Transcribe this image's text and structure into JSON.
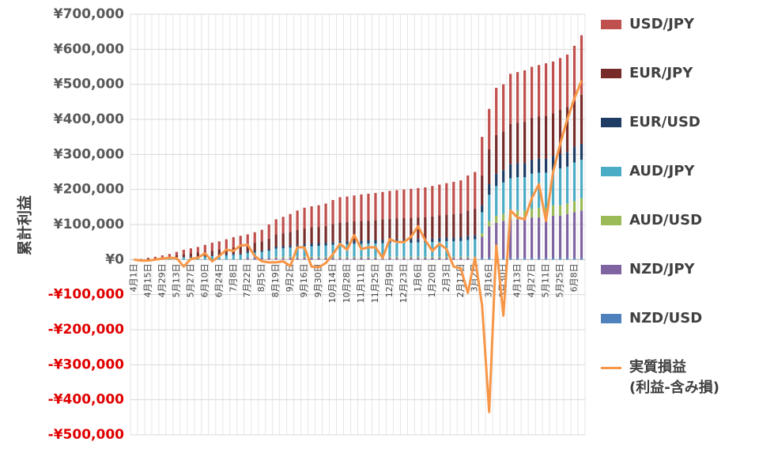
{
  "chart_data": {
    "type": "stacked-bar-line",
    "y_axis_label": "累計利益",
    "categories": [
      "4月1日",
      null,
      "4月15日",
      null,
      "4月29日",
      null,
      "5月13日",
      null,
      "5月27日",
      null,
      "6月10日",
      null,
      "6月24日",
      null,
      "7月8日",
      null,
      "7月22日",
      null,
      "8月5日",
      null,
      "8月19日",
      null,
      "9月2日",
      null,
      "9月16日",
      null,
      "9月30日",
      null,
      "10月14日",
      null,
      "10月28日",
      null,
      "11月11日",
      null,
      "11月25日",
      null,
      "12月9日",
      null,
      "12月23日",
      null,
      "1月6日",
      null,
      "1月20日",
      null,
      "2月3日",
      null,
      "2月17日",
      null,
      "3月2日",
      null,
      "3月16日",
      null,
      "3月30日",
      null,
      "4月13日",
      null,
      "4月27日",
      null,
      "5月11日",
      null,
      "5月25日",
      null,
      "6月8日",
      null
    ],
    "ylim": [
      -500000,
      700000
    ],
    "yticks": [
      {
        "value": 700000,
        "label": "¥700,000"
      },
      {
        "value": 600000,
        "label": "¥600,000"
      },
      {
        "value": 500000,
        "label": "¥500,000"
      },
      {
        "value": 400000,
        "label": "¥400,000"
      },
      {
        "value": 300000,
        "label": "¥300,000"
      },
      {
        "value": 200000,
        "label": "¥200,000"
      },
      {
        "value": 100000,
        "label": "¥100,000"
      },
      {
        "value": 0,
        "label": "¥0"
      },
      {
        "value": -100000,
        "label": "-¥100,000"
      },
      {
        "value": -200000,
        "label": "-¥200,000"
      },
      {
        "value": -300000,
        "label": "-¥300,000"
      },
      {
        "value": -400000,
        "label": "-¥400,000"
      },
      {
        "value": -500000,
        "label": "-¥500,000"
      }
    ],
    "grid": true,
    "legend": "right",
    "series": [
      {
        "name": "USD/JPY",
        "color": "#c0504d",
        "values": [
          0,
          1000,
          2000,
          4000,
          5000,
          7000,
          10000,
          13000,
          14000,
          16000,
          19000,
          22000,
          23000,
          26000,
          29000,
          31000,
          27000,
          30000,
          33000,
          40000,
          43000,
          47000,
          51000,
          55000,
          59000,
          60000,
          62000,
          64000,
          69000,
          72000,
          73000,
          74000,
          76000,
          77000,
          77000,
          78000,
          80000,
          81000,
          82000,
          83000,
          84000,
          85000,
          87000,
          88000,
          90000,
          92000,
          94000,
          100000,
          105000,
          110000,
          115000,
          135000,
          135000,
          143000,
          145000,
          147000,
          145000,
          147000,
          150000,
          148000,
          148000,
          150000,
          158000,
          170000
        ]
      },
      {
        "name": "EUR/JPY",
        "color": "#772c2a",
        "values": [
          0,
          1000,
          2000,
          2000,
          4000,
          5000,
          7000,
          8000,
          10000,
          11000,
          13000,
          14000,
          16000,
          17000,
          19000,
          20000,
          22000,
          23000,
          26000,
          30000,
          35000,
          37000,
          39000,
          42000,
          44000,
          46000,
          46000,
          48000,
          51000,
          53000,
          54000,
          55000,
          56000,
          56000,
          57000,
          58000,
          59000,
          59000,
          60000,
          61000,
          61000,
          62000,
          63000,
          64000,
          65000,
          67000,
          68000,
          72000,
          75000,
          85000,
          100000,
          110000,
          110000,
          115000,
          115000,
          118000,
          120000,
          120000,
          122000,
          122000,
          125000,
          128000,
          130000,
          140000
        ]
      },
      {
        "name": "EUR/USD",
        "color": "#1f3d64",
        "values": [
          0,
          0,
          0,
          0,
          1000,
          1000,
          1000,
          1000,
          2000,
          2000,
          2000,
          2000,
          3000,
          3000,
          3000,
          3000,
          4000,
          4000,
          4000,
          5000,
          6000,
          6000,
          6000,
          7000,
          7000,
          8000,
          8000,
          8000,
          8000,
          9000,
          9000,
          9000,
          9000,
          9000,
          10000,
          10000,
          10000,
          10000,
          10000,
          10000,
          10000,
          10000,
          10000,
          11000,
          11000,
          11000,
          11000,
          12000,
          12000,
          20000,
          30000,
          35000,
          35000,
          40000,
          40000,
          40000,
          40000,
          40000,
          40000,
          40000,
          42000,
          42000,
          45000,
          45000
        ]
      },
      {
        "name": "AUD/JPY",
        "color": "#4bacc6",
        "values": [
          0,
          0,
          1000,
          2000,
          2000,
          3000,
          4000,
          6000,
          6000,
          7000,
          8000,
          10000,
          10000,
          12000,
          13000,
          14000,
          14000,
          16000,
          17000,
          20000,
          23000,
          24000,
          26000,
          28000,
          30000,
          30000,
          31000,
          32000,
          34000,
          36000,
          36000,
          37000,
          37000,
          38000,
          38000,
          39000,
          39000,
          40000,
          40000,
          40000,
          41000,
          41000,
          42000,
          43000,
          44000,
          44000,
          45000,
          48000,
          50000,
          60000,
          75000,
          85000,
          90000,
          95000,
          95000,
          95000,
          100000,
          100000,
          100000,
          100000,
          105000,
          105000,
          110000,
          110000
        ]
      },
      {
        "name": "AUD/USD",
        "color": "#9bbb59",
        "values": [
          0,
          0,
          0,
          0,
          0,
          0,
          0,
          0,
          0,
          0,
          0,
          0,
          0,
          0,
          0,
          0,
          0,
          0,
          0,
          0,
          3000,
          3000,
          3000,
          3000,
          3000,
          3000,
          3000,
          3000,
          3000,
          3000,
          3000,
          3000,
          3000,
          3000,
          3000,
          3000,
          3000,
          3000,
          3000,
          3000,
          3000,
          3000,
          3000,
          3000,
          3000,
          3000,
          3000,
          3000,
          3000,
          10000,
          15000,
          20000,
          20000,
          22000,
          25000,
          25000,
          25000,
          28000,
          28000,
          30000,
          30000,
          30000,
          32000,
          35000
        ]
      },
      {
        "name": "NZD/JPY",
        "color": "#8064a2",
        "values": [
          0,
          0,
          0,
          0,
          0,
          0,
          0,
          0,
          0,
          0,
          0,
          0,
          0,
          0,
          0,
          0,
          5000,
          5000,
          5000,
          5000,
          5000,
          5000,
          5000,
          5000,
          5000,
          5000,
          5000,
          5000,
          5000,
          5000,
          5000,
          5000,
          5000,
          5000,
          5000,
          5000,
          5000,
          5000,
          5000,
          5000,
          5000,
          5000,
          5000,
          5000,
          5000,
          5000,
          5000,
          5000,
          5000,
          60000,
          90000,
          100000,
          105000,
          110000,
          110000,
          110000,
          115000,
          115000,
          115000,
          120000,
          120000,
          125000,
          130000,
          135000
        ]
      },
      {
        "name": "NZD/USD",
        "color": "#4f81bd",
        "values": [
          0,
          0,
          0,
          0,
          0,
          0,
          0,
          0,
          0,
          0,
          0,
          0,
          0,
          0,
          0,
          0,
          0,
          0,
          0,
          0,
          0,
          0,
          0,
          0,
          0,
          0,
          0,
          0,
          0,
          0,
          0,
          0,
          0,
          0,
          0,
          0,
          0,
          0,
          0,
          0,
          0,
          0,
          0,
          0,
          0,
          0,
          0,
          0,
          0,
          5000,
          5000,
          5000,
          5000,
          5000,
          5000,
          5000,
          5000,
          5000,
          5000,
          5000,
          5000,
          5000,
          5000,
          5000
        ]
      },
      {
        "name": "実質損益\n(利益-含み損)",
        "color": "#f79646",
        "type": "line",
        "values": [
          0,
          -3000,
          -3000,
          0,
          3000,
          5000,
          4000,
          -20000,
          2000,
          5000,
          18000,
          -5000,
          10000,
          28000,
          25000,
          40000,
          42000,
          10000,
          -5000,
          -8000,
          -8000,
          -5000,
          -18000,
          35000,
          35000,
          -20000,
          -22000,
          -10000,
          15000,
          45000,
          28000,
          70000,
          30000,
          35000,
          35000,
          5000,
          58000,
          50000,
          50000,
          65000,
          95000,
          55000,
          25000,
          45000,
          30000,
          -20000,
          -25000,
          -95000,
          5000,
          -130000,
          -435000,
          40000,
          -160000,
          140000,
          120000,
          115000,
          175000,
          215000,
          110000,
          250000,
          330000,
          400000,
          460000,
          510000
        ]
      }
    ]
  }
}
